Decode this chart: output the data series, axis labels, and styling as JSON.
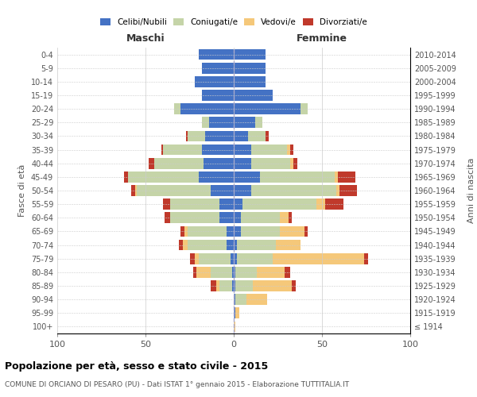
{
  "age_groups": [
    "100+",
    "95-99",
    "90-94",
    "85-89",
    "80-84",
    "75-79",
    "70-74",
    "65-69",
    "60-64",
    "55-59",
    "50-54",
    "45-49",
    "40-44",
    "35-39",
    "30-34",
    "25-29",
    "20-24",
    "15-19",
    "10-14",
    "5-9",
    "0-4"
  ],
  "birth_years": [
    "≤ 1914",
    "1915-1919",
    "1920-1924",
    "1925-1929",
    "1930-1934",
    "1935-1939",
    "1940-1944",
    "1945-1949",
    "1950-1954",
    "1955-1959",
    "1960-1964",
    "1965-1969",
    "1970-1974",
    "1975-1979",
    "1980-1984",
    "1985-1989",
    "1990-1994",
    "1995-1999",
    "2000-2004",
    "2005-2009",
    "2010-2014"
  ],
  "colors": {
    "celibi": "#4472C4",
    "coniugati": "#c5d4a8",
    "vedovi": "#f5c87a",
    "divorziati": "#c0392b"
  },
  "maschi": {
    "celibi": [
      0,
      0,
      0,
      1,
      1,
      2,
      4,
      4,
      8,
      8,
      13,
      20,
      17,
      18,
      16,
      14,
      30,
      18,
      22,
      18,
      20
    ],
    "coniugati": [
      0,
      0,
      0,
      7,
      12,
      18,
      22,
      22,
      28,
      28,
      42,
      40,
      28,
      22,
      10,
      4,
      4,
      0,
      0,
      0,
      0
    ],
    "vedovi": [
      0,
      0,
      0,
      2,
      8,
      2,
      3,
      2,
      0,
      0,
      1,
      0,
      0,
      0,
      0,
      0,
      0,
      0,
      0,
      0,
      0
    ],
    "divorziati": [
      0,
      0,
      0,
      3,
      2,
      3,
      2,
      2,
      3,
      4,
      2,
      2,
      3,
      1,
      1,
      0,
      0,
      0,
      0,
      0,
      0
    ]
  },
  "femmine": {
    "celibi": [
      0,
      1,
      1,
      1,
      1,
      2,
      2,
      4,
      4,
      5,
      10,
      15,
      10,
      10,
      8,
      12,
      38,
      22,
      18,
      18,
      18
    ],
    "coniugati": [
      0,
      0,
      6,
      10,
      12,
      20,
      22,
      22,
      22,
      42,
      48,
      42,
      22,
      20,
      10,
      4,
      4,
      0,
      0,
      0,
      0
    ],
    "vedovi": [
      1,
      2,
      12,
      22,
      16,
      52,
      14,
      14,
      5,
      5,
      2,
      2,
      2,
      2,
      0,
      0,
      0,
      0,
      0,
      0,
      0
    ],
    "divorziati": [
      0,
      0,
      0,
      2,
      3,
      2,
      0,
      2,
      2,
      10,
      10,
      10,
      2,
      2,
      2,
      0,
      0,
      0,
      0,
      0,
      0
    ]
  },
  "xlim": 100,
  "title": "Popolazione per età, sesso e stato civile - 2015",
  "subtitle": "COMUNE DI ORCIANO DI PESARO (PU) - Dati ISTAT 1° gennaio 2015 - Elaborazione TUTTITALIA.IT",
  "ylabel_left": "Fasce di età",
  "ylabel_right": "Anni di nascita",
  "xlabel_left": "Maschi",
  "xlabel_right": "Femmine",
  "legend_labels": [
    "Celibi/Nubili",
    "Coniugati/e",
    "Vedovi/e",
    "Divorziati/e"
  ],
  "bg_color": "#ffffff",
  "grid_color": "#cccccc",
  "bar_height": 0.8
}
